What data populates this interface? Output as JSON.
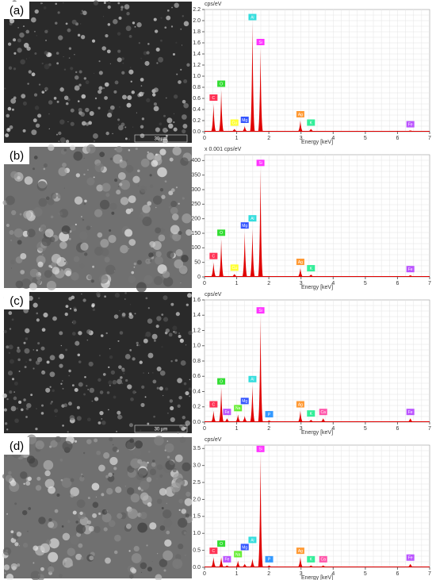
{
  "chart_data": [
    {
      "type": "spectrum",
      "panel_label": "(a)",
      "scale_bar": "30 µm",
      "y_label": "cps/eV",
      "x_label": "Energy [keV]",
      "xlim": [
        0,
        7
      ],
      "xticks": [
        0,
        1,
        2,
        3,
        4,
        5,
        6,
        7
      ],
      "ylim": [
        0,
        2.2
      ],
      "yticks": [
        {
          "value": 0,
          "label": "0.0"
        },
        0.2,
        0.4,
        0.6,
        0.8,
        {
          "value": 1,
          "label": "1.0"
        },
        1.2,
        1.4,
        1.6,
        1.8,
        {
          "value": 2,
          "label": "2.0"
        },
        2.2
      ],
      "grid": true,
      "color": "#e00000",
      "x": [
        0.28,
        0.52,
        0.93,
        1.25,
        1.49,
        1.74,
        2.98,
        3.31,
        6.4
      ],
      "values": [
        0.5,
        0.75,
        0.05,
        0.1,
        1.95,
        1.5,
        0.2,
        0.05,
        0.02
      ],
      "labels": [
        "C",
        "O",
        "Cu",
        "Mg",
        "Al",
        "Si",
        "Ag",
        "K",
        "Fe"
      ],
      "label_colors": [
        "#ff3355",
        "#33dd33",
        "#ffff33",
        "#3355ff",
        "#33dddd",
        "#ff33ff",
        "#ff9933",
        "#33ee99",
        "#bb55ff"
      ]
    },
    {
      "type": "spectrum",
      "panel_label": "(b)",
      "y_label": "x 0.001 cps/eV",
      "x_label": "Energy [keV]",
      "xlim": [
        0,
        7
      ],
      "xticks": [
        0,
        1,
        2,
        3,
        4,
        5,
        6,
        7
      ],
      "ylim": [
        0,
        420
      ],
      "yticks": [
        0,
        50,
        100,
        150,
        200,
        250,
        300,
        350,
        400
      ],
      "grid": true,
      "color": "#e00000",
      "x": [
        0.28,
        0.52,
        0.93,
        1.25,
        1.49,
        1.74,
        2.98,
        3.31,
        6.4
      ],
      "values": [
        50,
        130,
        10,
        155,
        165,
        370,
        30,
        8,
        5
      ],
      "labels": [
        "C",
        "O",
        "Cu",
        "Mg",
        "Al",
        "Si",
        "Ag",
        "K",
        "Fe"
      ],
      "label_colors": [
        "#ff3355",
        "#33dd33",
        "#ffff33",
        "#3355ff",
        "#33dddd",
        "#ff33ff",
        "#ff9933",
        "#33ee99",
        "#bb55ff"
      ]
    },
    {
      "type": "spectrum",
      "panel_label": "(c)",
      "scale_bar": "30 µm",
      "y_label": "cps/eV",
      "x_label": "Energy [keV]",
      "xlim": [
        0,
        7
      ],
      "xticks": [
        0,
        1,
        2,
        3,
        4,
        5,
        6,
        7
      ],
      "ylim": [
        0,
        1.6
      ],
      "yticks": [
        {
          "value": 0,
          "label": "0.0"
        },
        0.2,
        0.4,
        0.6,
        0.8,
        {
          "value": 1,
          "label": "1.0"
        },
        1.2,
        1.4,
        1.6
      ],
      "grid": true,
      "color": "#e00000",
      "x": [
        0.28,
        0.52,
        0.7,
        1.04,
        1.25,
        1.49,
        1.74,
        2.01,
        2.98,
        3.31,
        3.69,
        6.4
      ],
      "values": [
        0.15,
        0.45,
        0.05,
        0.1,
        0.08,
        0.48,
        1.38,
        0.02,
        0.15,
        0.03,
        0.05,
        0.05
      ],
      "labels": [
        "C",
        "O",
        "Fe",
        "Na",
        "Mg",
        "Al",
        "Si",
        "P",
        "Ag",
        "K",
        "Ca",
        "Fe"
      ],
      "label_colors": [
        "#ff3355",
        "#33dd33",
        "#bb55ff",
        "#66ee33",
        "#3355ff",
        "#33dddd",
        "#ff33ff",
        "#3399ff",
        "#ff9933",
        "#33ee99",
        "#ff55aa",
        "#bb55ff"
      ]
    },
    {
      "type": "spectrum",
      "panel_label": "(d)",
      "y_label": "cps/eV",
      "x_label": "Energy [keV]",
      "xlim": [
        0,
        7
      ],
      "xticks": [
        0,
        1,
        2,
        3,
        4,
        5,
        6,
        7
      ],
      "ylim": [
        0,
        3.6
      ],
      "yticks": [
        {
          "value": 0,
          "label": "0.0"
        },
        0.5,
        {
          "value": 1,
          "label": "1.0"
        },
        1.5,
        {
          "value": 2,
          "label": "2.0"
        },
        2.5,
        {
          "value": 3,
          "label": "3.0"
        },
        3.5
      ],
      "grid": true,
      "color": "#e00000",
      "x": [
        0.28,
        0.52,
        0.7,
        1.04,
        1.25,
        1.49,
        1.74,
        2.01,
        2.98,
        3.31,
        3.69,
        6.4
      ],
      "values": [
        0.3,
        0.3,
        0.05,
        0.2,
        0.1,
        0.25,
        3.3,
        0.05,
        0.3,
        0.05,
        0.05,
        0.1
      ],
      "labels": [
        "C",
        "O",
        "Fe",
        "Na",
        "Mg",
        "Al",
        "Si",
        "P",
        "Ag",
        "K",
        "Ca",
        "Fe"
      ],
      "label_colors": [
        "#ff3355",
        "#33dd33",
        "#bb55ff",
        "#66ee33",
        "#3355ff",
        "#33dddd",
        "#ff33ff",
        "#3399ff",
        "#ff9933",
        "#33ee99",
        "#ff55aa",
        "#bb55ff"
      ]
    }
  ]
}
